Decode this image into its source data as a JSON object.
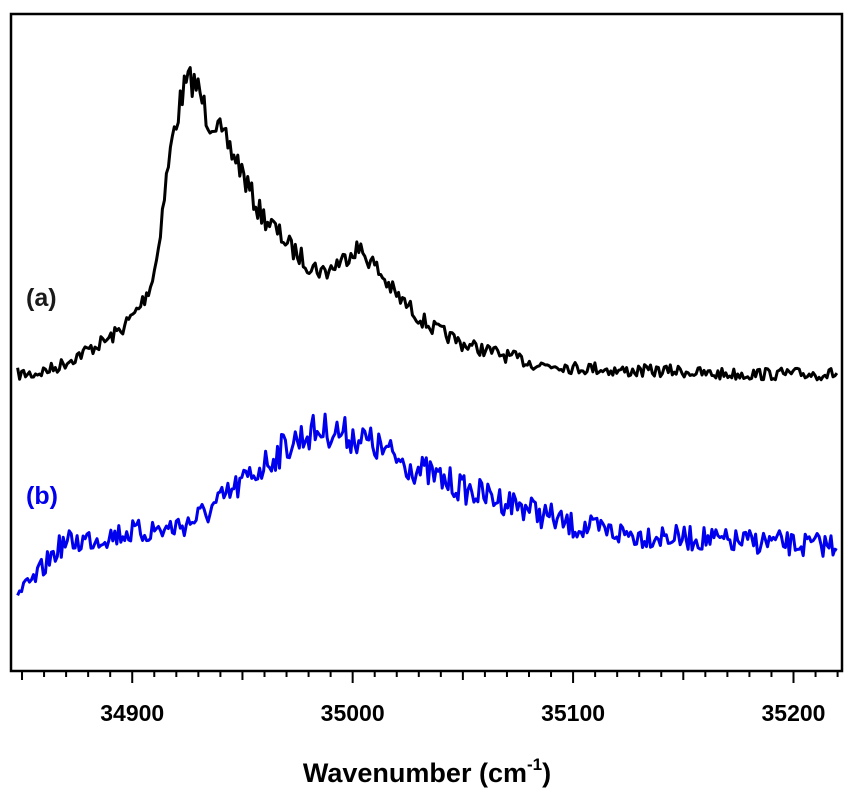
{
  "chart_data": {
    "type": "line",
    "title": "",
    "xlabel": "Wavenumber (cm",
    "xlabel_superscript": "-1",
    "xlabel_suffix": ")",
    "ylabel": "",
    "xlim": [
      34845,
      35222
    ],
    "y_axis_ticks_shown": false,
    "grid": false,
    "x_ticks": [
      {
        "value": 34900,
        "label": "34900"
      },
      {
        "value": 35000,
        "label": "35000"
      },
      {
        "value": 35100,
        "label": "35100"
      },
      {
        "value": 35200,
        "label": "35200"
      }
    ],
    "series": [
      {
        "name": "(a)",
        "color": "#000000",
        "x": [
          34848,
          34855,
          34860,
          34865,
          34870,
          34875,
          34880,
          34885,
          34890,
          34895,
          34900,
          34903,
          34906,
          34909,
          34911,
          34913,
          34915,
          34917,
          34919,
          34921,
          34923,
          34925,
          34927,
          34929,
          34931,
          34933,
          34935,
          34937,
          34939,
          34941,
          34943,
          34945,
          34947,
          34949,
          34951,
          34954,
          34957,
          34960,
          34963,
          34966,
          34969,
          34972,
          34975,
          34978,
          34981,
          34984,
          34987,
          34990,
          34993,
          34996,
          34999,
          35002,
          35005,
          35008,
          35011,
          35014,
          35017,
          35020,
          35023,
          35026,
          35030,
          35035,
          35040,
          35045,
          35050,
          35055,
          35060,
          35065,
          35070,
          35075,
          35080,
          35085,
          35090,
          35095,
          35100,
          35110,
          35120,
          35130,
          35140,
          35150,
          35160,
          35170,
          35180,
          35190,
          35200,
          35210,
          35220
        ],
        "y": [
          0.02,
          0.02,
          0.03,
          0.04,
          0.06,
          0.08,
          0.1,
          0.12,
          0.14,
          0.17,
          0.21,
          0.24,
          0.28,
          0.33,
          0.4,
          0.52,
          0.64,
          0.75,
          0.83,
          0.9,
          0.96,
          0.99,
          1.0,
          0.98,
          0.95,
          0.9,
          0.86,
          0.87,
          0.84,
          0.8,
          0.79,
          0.76,
          0.74,
          0.71,
          0.67,
          0.62,
          0.57,
          0.54,
          0.52,
          0.49,
          0.47,
          0.44,
          0.42,
          0.4,
          0.38,
          0.37,
          0.36,
          0.37,
          0.39,
          0.4,
          0.43,
          0.44,
          0.42,
          0.4,
          0.37,
          0.34,
          0.31,
          0.28,
          0.26,
          0.24,
          0.21,
          0.18,
          0.16,
          0.14,
          0.12,
          0.11,
          0.1,
          0.09,
          0.08,
          0.07,
          0.06,
          0.05,
          0.05,
          0.05,
          0.04,
          0.04,
          0.03,
          0.03,
          0.03,
          0.03,
          0.02,
          0.02,
          0.02,
          0.02,
          0.02,
          0.02,
          0.02
        ]
      },
      {
        "name": "(b)",
        "color": "#0000ee",
        "x": [
          34848,
          34852,
          34856,
          34860,
          34864,
          34868,
          34872,
          34876,
          34880,
          34884,
          34888,
          34892,
          34896,
          34900,
          34905,
          34910,
          34915,
          34920,
          34925,
          34930,
          34935,
          34940,
          34945,
          34950,
          34955,
          34960,
          34965,
          34970,
          34975,
          34980,
          34985,
          34990,
          34995,
          35000,
          35005,
          35010,
          35015,
          35020,
          35025,
          35030,
          35035,
          35040,
          35045,
          35050,
          35055,
          35060,
          35065,
          35070,
          35075,
          35080,
          35085,
          35090,
          35095,
          35100,
          35110,
          35120,
          35130,
          35140,
          35150,
          35160,
          35170,
          35180,
          35190,
          35200,
          35210,
          35220
        ],
        "y": [
          0.05,
          0.07,
          0.1,
          0.14,
          0.18,
          0.21,
          0.22,
          0.22,
          0.23,
          0.23,
          0.24,
          0.24,
          0.25,
          0.25,
          0.25,
          0.26,
          0.26,
          0.27,
          0.28,
          0.3,
          0.32,
          0.35,
          0.38,
          0.41,
          0.44,
          0.47,
          0.5,
          0.53,
          0.55,
          0.57,
          0.58,
          0.58,
          0.57,
          0.56,
          0.55,
          0.53,
          0.51,
          0.49,
          0.47,
          0.45,
          0.44,
          0.42,
          0.41,
          0.39,
          0.38,
          0.37,
          0.36,
          0.35,
          0.34,
          0.33,
          0.31,
          0.3,
          0.28,
          0.27,
          0.26,
          0.25,
          0.24,
          0.24,
          0.23,
          0.23,
          0.22,
          0.22,
          0.22,
          0.21,
          0.21,
          0.21
        ]
      }
    ]
  }
}
